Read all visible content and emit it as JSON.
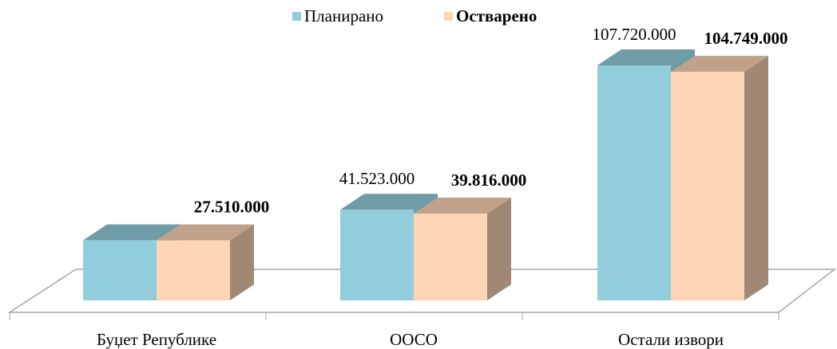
{
  "chart_data": {
    "type": "bar3d",
    "categories": [
      "Буџет Републике",
      "ООСО",
      "Остали извори"
    ],
    "series": [
      {
        "name": "Планирано",
        "color": "#92cddc",
        "values": [
          27510000,
          41523000,
          107720000
        ],
        "value_labels": [
          null,
          "41.523.000",
          "107.720.000"
        ]
      },
      {
        "name": "Остварено",
        "color": "#fcd5b5",
        "values": [
          27510000,
          39816000,
          104749000
        ],
        "value_labels": [
          "27.510.000",
          "39.816.000",
          "104.749.000"
        ]
      }
    ],
    "legend": "top"
  }
}
